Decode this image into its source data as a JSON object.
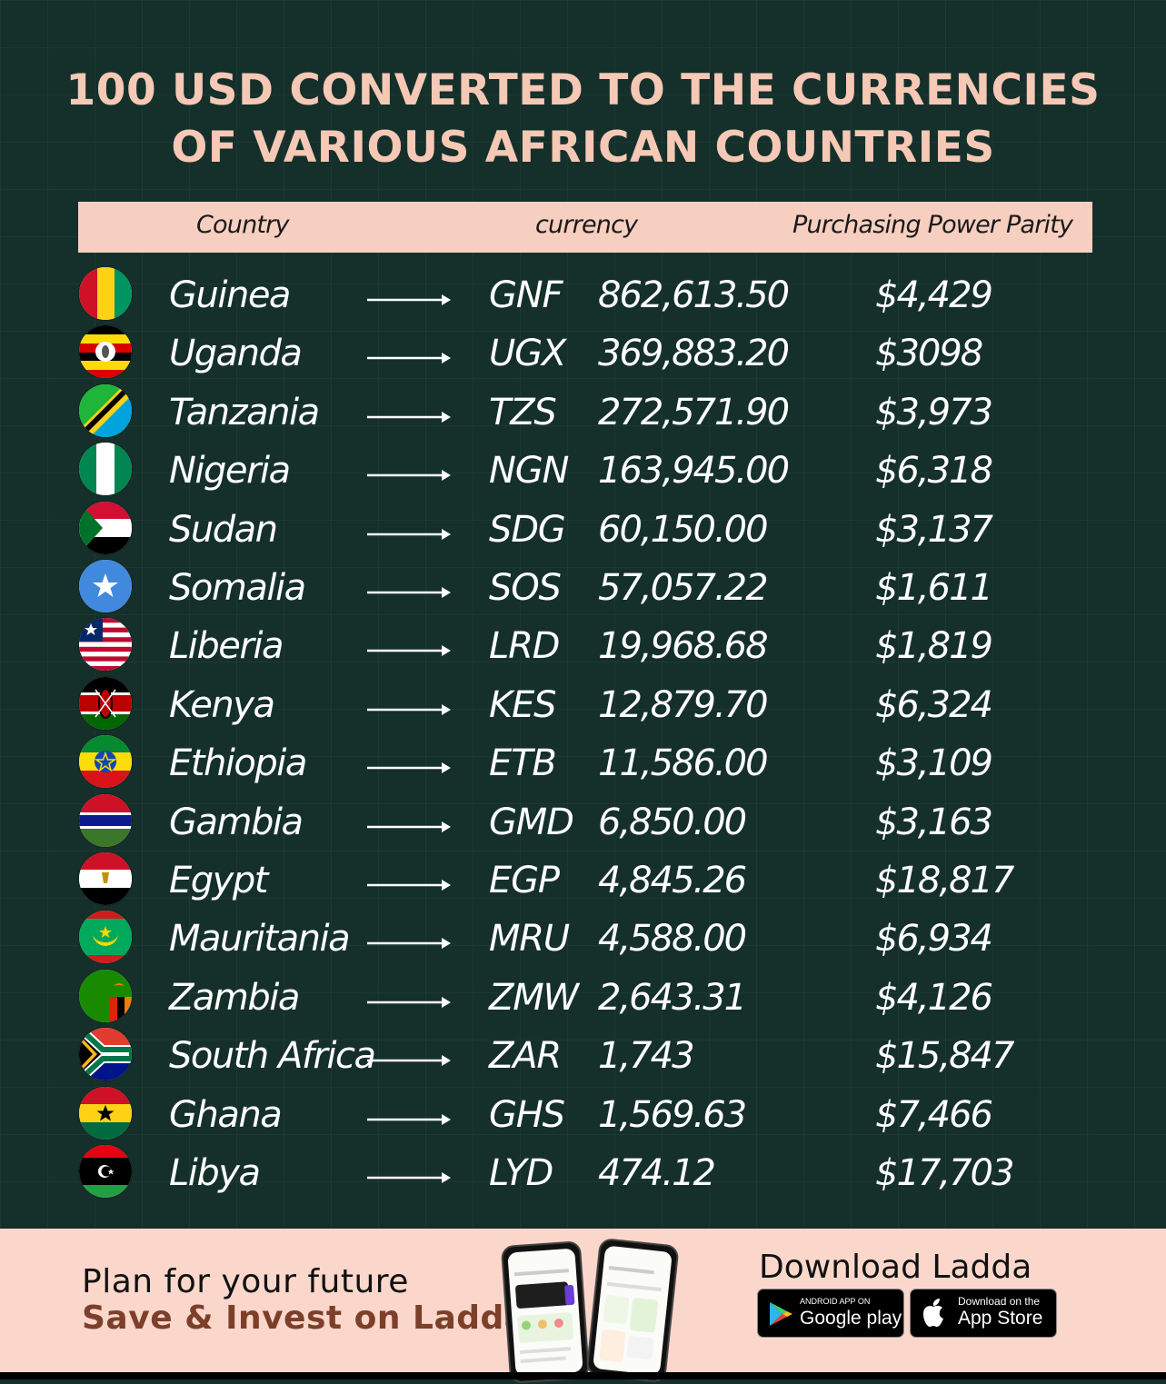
{
  "title": {
    "line1": "100 USD CONVERTED TO THE CURRENCIES",
    "line2": "OF VARIOUS AFRICAN COUNTRIES"
  },
  "table_header": {
    "country": "Country",
    "currency": "currency",
    "ppp": "Purchasing Power Parity"
  },
  "rows": [
    {
      "country": "Guinea",
      "code": "GNF",
      "amount": "862,613.50",
      "ppp": "$4,429",
      "flag": "guinea-flag"
    },
    {
      "country": "Uganda",
      "code": "UGX",
      "amount": "369,883.20",
      "ppp": "$3098",
      "flag": "uganda-flag"
    },
    {
      "country": "Tanzania",
      "code": "TZS",
      "amount": "272,571.90",
      "ppp": "$3,973",
      "flag": "tanzania-flag"
    },
    {
      "country": "Nigeria",
      "code": "NGN",
      "amount": "163,945.00",
      "ppp": "$6,318",
      "flag": "nigeria-flag"
    },
    {
      "country": "Sudan",
      "code": "SDG",
      "amount": "60,150.00",
      "ppp": "$3,137",
      "flag": "sudan-flag"
    },
    {
      "country": "Somalia",
      "code": "SOS",
      "amount": "57,057.22",
      "ppp": "$1,611",
      "flag": "somalia-flag"
    },
    {
      "country": "Liberia",
      "code": "LRD",
      "amount": "19,968.68",
      "ppp": "$1,819",
      "flag": "liberia-flag"
    },
    {
      "country": "Kenya",
      "code": "KES",
      "amount": "12,879.70",
      "ppp": "$6,324",
      "flag": "kenya-flag"
    },
    {
      "country": "Ethiopia",
      "code": "ETB",
      "amount": "11,586.00",
      "ppp": "$3,109",
      "flag": "ethiopia-flag"
    },
    {
      "country": "Gambia",
      "code": "GMD",
      "amount": "6,850.00",
      "ppp": "$3,163",
      "flag": "gambia-flag"
    },
    {
      "country": "Egypt",
      "code": "EGP",
      "amount": "4,845.26",
      "ppp": "$18,817",
      "flag": "egypt-flag"
    },
    {
      "country": "Mauritania",
      "code": "MRU",
      "amount": "4,588.00",
      "ppp": "$6,934",
      "flag": "mauritania-flag"
    },
    {
      "country": "Zambia",
      "code": "ZMW",
      "amount": "2,643.31",
      "ppp": "$4,126",
      "flag": "zambia-flag"
    },
    {
      "country": "South Africa",
      "code": "ZAR",
      "amount": "1,743",
      "ppp": "$15,847",
      "flag": "south-africa-flag"
    },
    {
      "country": "Ghana",
      "code": "GHS",
      "amount": "1,569.63",
      "ppp": "$7,466",
      "flag": "ghana-flag"
    },
    {
      "country": "Libya",
      "code": "LYD",
      "amount": "474.12",
      "ppp": "$17,703",
      "flag": "libya-flag"
    }
  ],
  "footer": {
    "tagline": "Plan for your future",
    "cta": "Save & Invest on Ladda",
    "download_title": "Download Ladda",
    "google_play_small": "ANDROID APP ON",
    "google_play_big": "Google play",
    "app_store_small": "Download on the",
    "app_store_big": "App Store"
  },
  "colors": {
    "background": "#15302a",
    "title": "#f6c8b6",
    "header_bar": "#f7cfc0",
    "footer": "#fbd7cb",
    "cta": "#7b3f2a"
  }
}
